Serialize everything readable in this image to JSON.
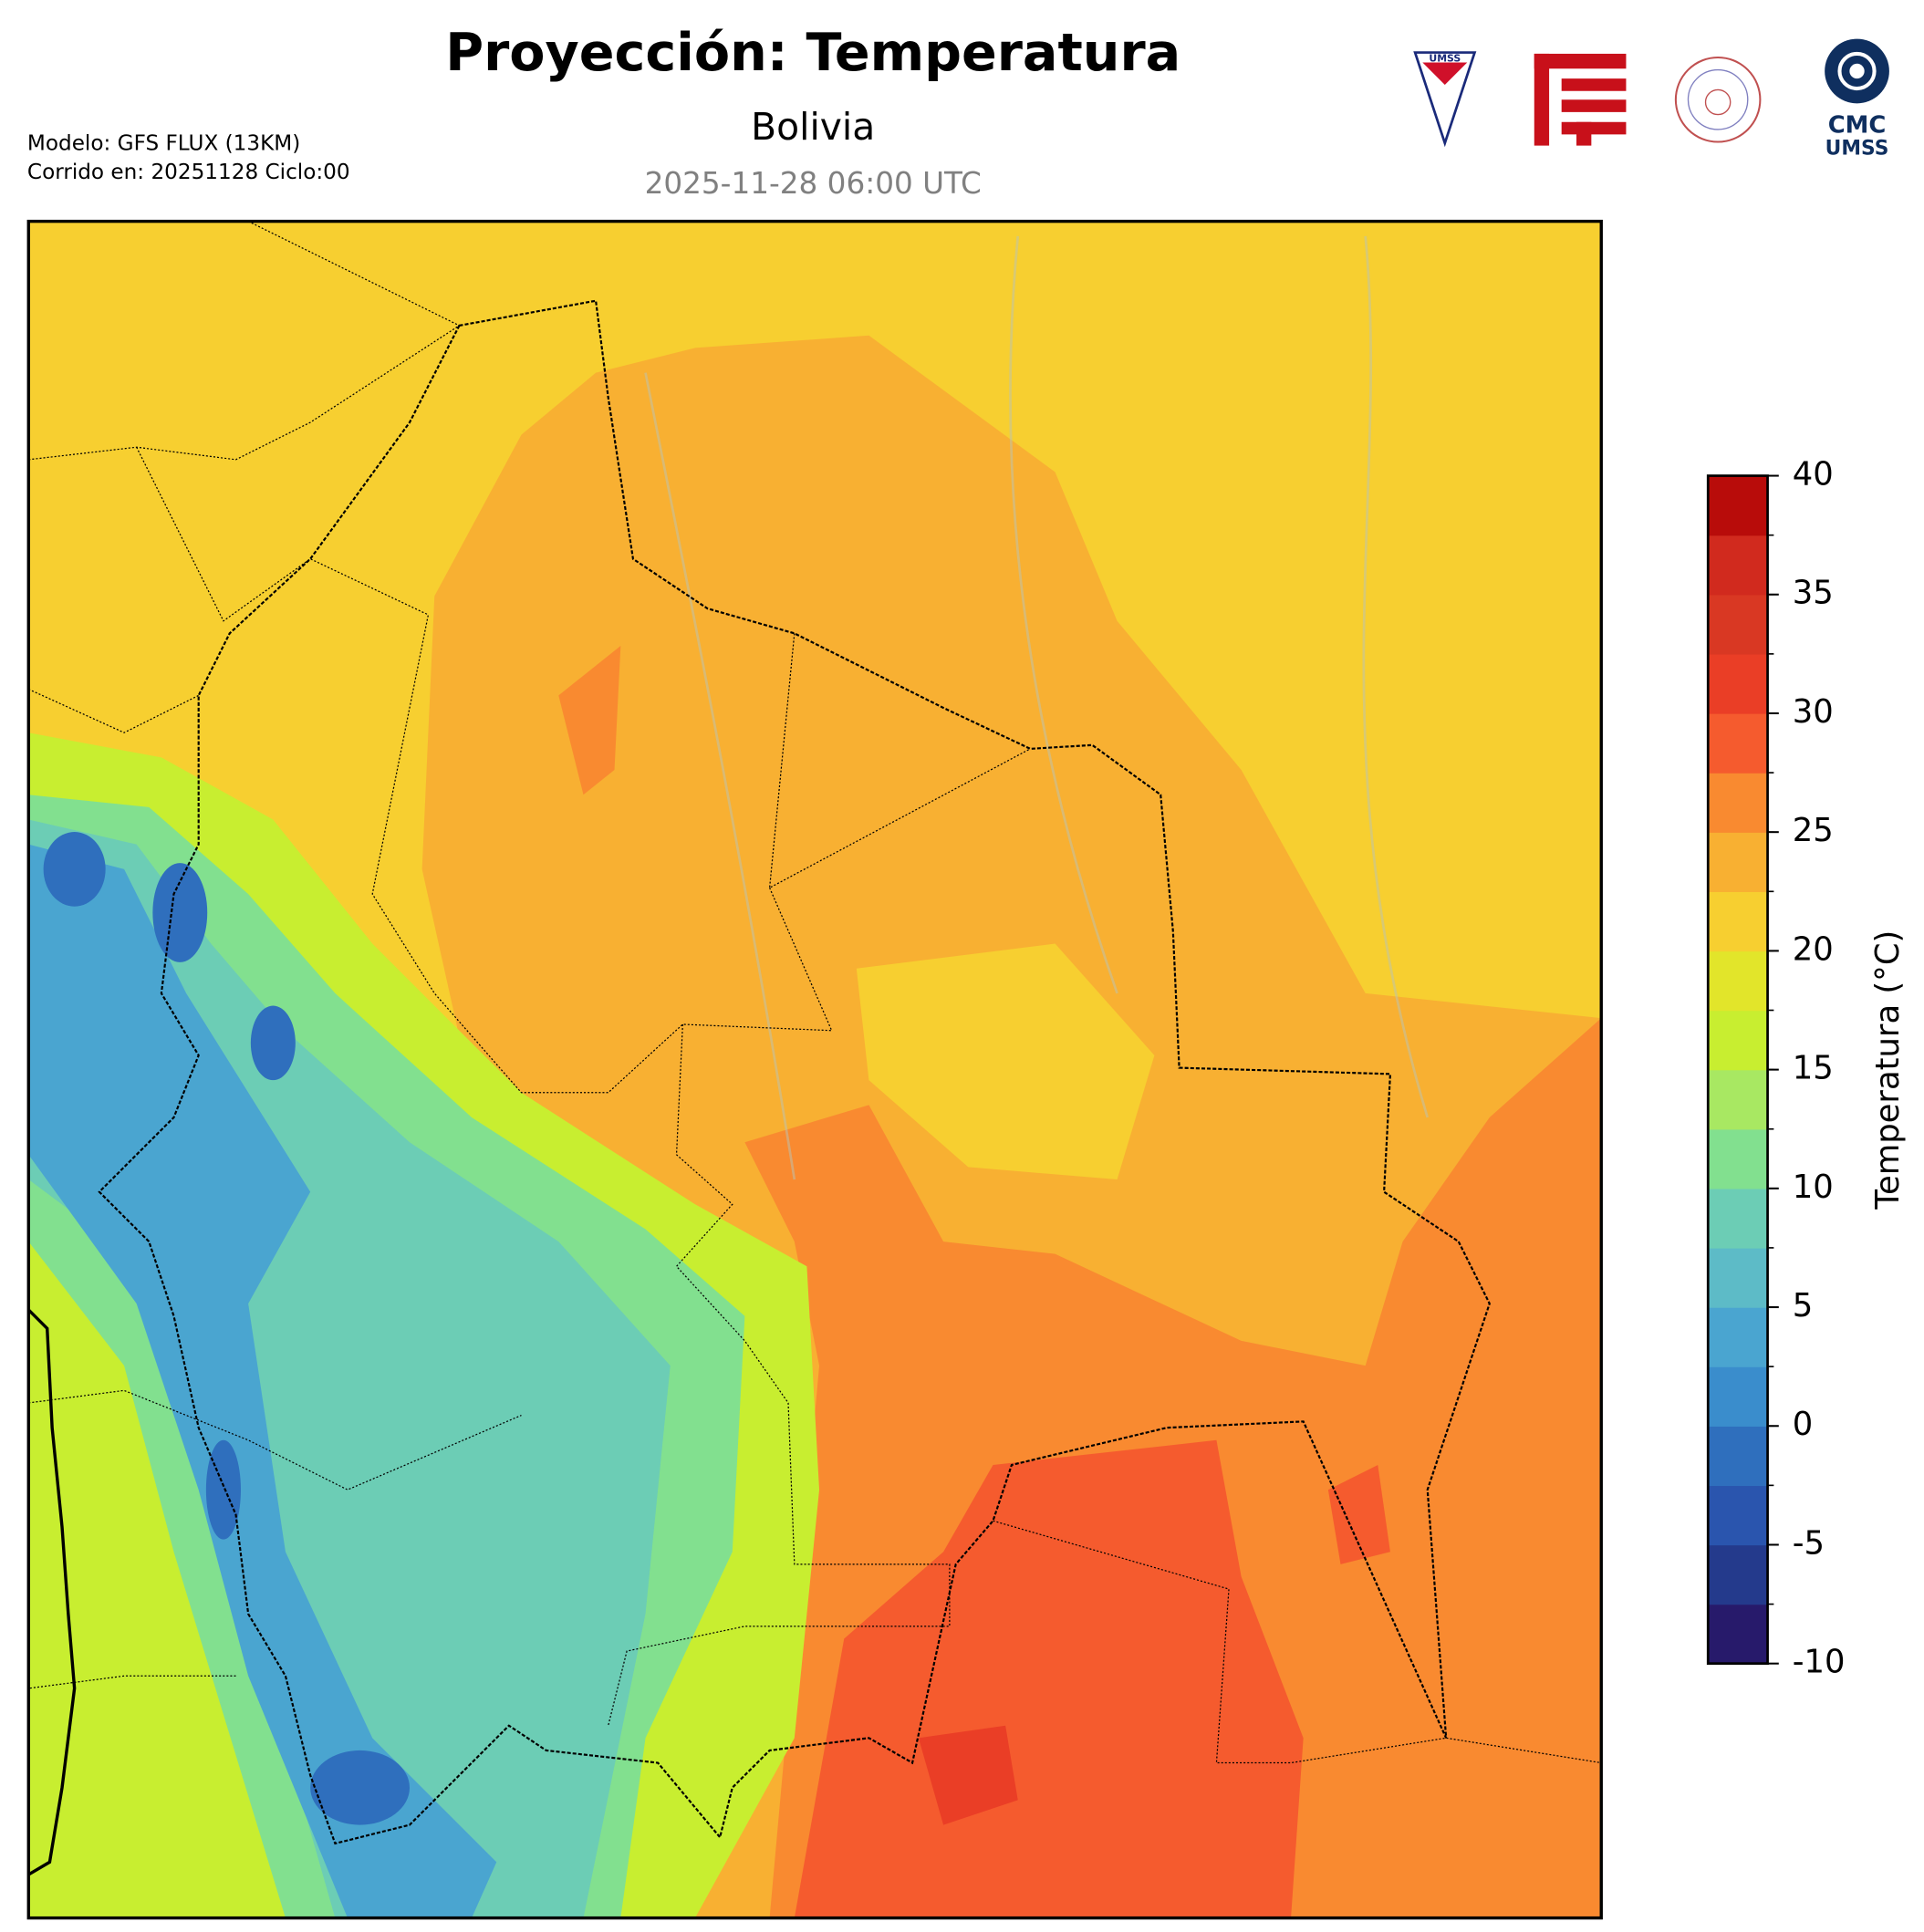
{
  "header": {
    "title": "Proyección: Temperatura",
    "subtitle": "Bolivia",
    "valid_time": "2025-11-28 06:00 UTC",
    "model": "Modelo: GFS FLUX (13KM)",
    "run": "Corrido en: 20251128 Ciclo:00"
  },
  "logos": {
    "umss": "UMSS",
    "cmc": [
      "CMC",
      "UMSS"
    ]
  },
  "colorbar": {
    "label": "Temperatura (°C)",
    "lim": [
      -10,
      40
    ],
    "ticks": [
      -10,
      -5,
      0,
      5,
      10,
      15,
      20,
      25,
      30,
      35,
      40
    ],
    "colors": [
      "#271a6b",
      "#243a8c",
      "#2a55ae",
      "#2f6fbd",
      "#3a8dcc",
      "#4aa5d0",
      "#5dbbc7",
      "#6ccdb5",
      "#82e08f",
      "#a8e862",
      "#c8ee30",
      "#e2e52a",
      "#f7cf30",
      "#f8b032",
      "#f98a30",
      "#f55b2e",
      "#ea3e26",
      "#d93823",
      "#d12a1e",
      "#b80c0a"
    ]
  }
}
